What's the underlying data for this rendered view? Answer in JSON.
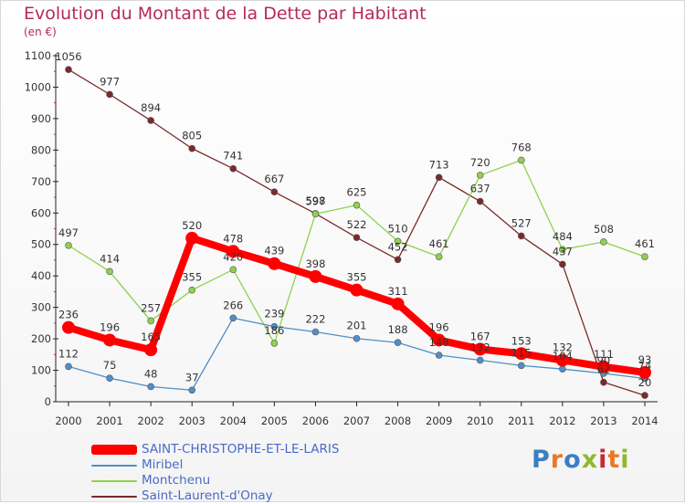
{
  "header": {
    "title": "Evolution du Montant de la Dette par Habitant",
    "subtitle": "(en €)"
  },
  "logo": {
    "text": "Proxiti"
  },
  "chart_data": {
    "type": "line",
    "x": [
      2000,
      2001,
      2002,
      2003,
      2004,
      2005,
      2006,
      2007,
      2008,
      2009,
      2010,
      2011,
      2012,
      2013,
      2014
    ],
    "ylim": [
      0,
      1100
    ],
    "yticks": [
      0,
      100,
      200,
      300,
      400,
      500,
      600,
      700,
      800,
      900,
      1000,
      1100
    ],
    "grid": false,
    "legend_position": "bottom-left",
    "series": [
      {
        "name": "SAINT-CHRISTOPHE-ET-LE-LARIS",
        "color": "#ff0000",
        "values": [
          236,
          196,
          165,
          520,
          478,
          439,
          398,
          355,
          311,
          196,
          167,
          153,
          132,
          111,
          93
        ],
        "labels": [
          "236",
          "196",
          "165",
          "520",
          "478",
          "439",
          "398",
          "355",
          "311",
          "196",
          "167",
          "153",
          "132",
          "111",
          "93"
        ]
      },
      {
        "name": "Miribel",
        "color": "#4f8fca",
        "values": [
          112,
          75,
          48,
          37,
          266,
          239,
          222,
          201,
          188,
          148,
          132,
          115,
          104,
          90,
          74
        ],
        "labels": [
          "112",
          "75",
          "48",
          "37",
          "266",
          "239",
          "222",
          "201",
          "188",
          "148",
          "132",
          "115",
          "104",
          "90",
          "74"
        ]
      },
      {
        "name": "Montchenu",
        "color": "#8fd14f",
        "values": [
          497,
          414,
          257,
          355,
          420,
          186,
          597,
          625,
          510,
          461,
          720,
          768,
          484,
          508,
          461
        ],
        "labels": [
          "497",
          "414",
          "257",
          "355",
          "420",
          "186",
          "597",
          "625",
          "510",
          "461",
          "720",
          "768",
          "484",
          "508",
          "461"
        ]
      },
      {
        "name": "Saint-Laurent-d'Onay",
        "color": "#7a2a2a",
        "values": [
          1056,
          977,
          894,
          805,
          741,
          667,
          598,
          522,
          452,
          713,
          637,
          527,
          437,
          62,
          20
        ],
        "labels": [
          "1056",
          "977",
          "894",
          "805",
          "741",
          "667",
          "598",
          "522",
          "452",
          "713",
          "637",
          "527",
          "437",
          "62",
          "20"
        ]
      }
    ]
  }
}
